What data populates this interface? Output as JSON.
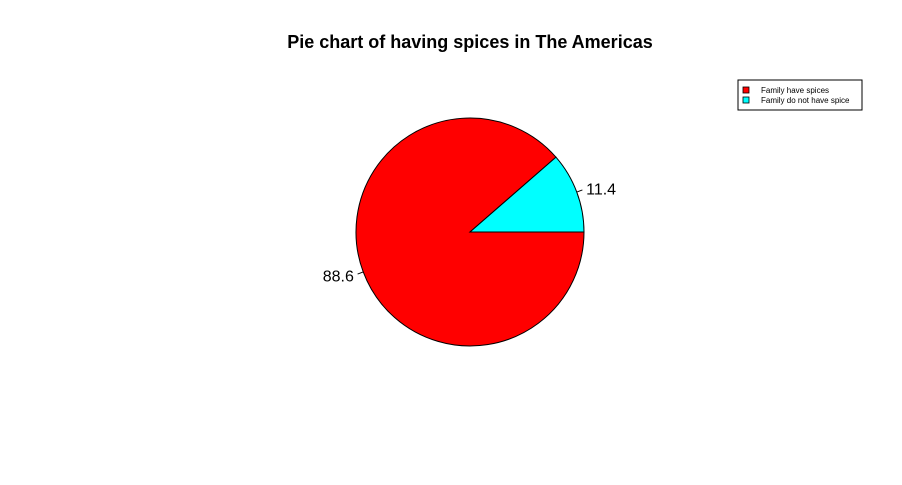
{
  "chart_data": {
    "type": "pie",
    "title": "Pie chart of having spices in The Americas",
    "labels": [
      "Family have spices",
      "Family do not have spice"
    ],
    "values": [
      88.6,
      11.4
    ],
    "value_labels": [
      "88.6",
      "11.4"
    ],
    "colors": [
      "#FF0000",
      "#00FFFF"
    ],
    "start_angle_deg": 0,
    "direction": "clockwise",
    "legend": {
      "position": "top-right",
      "entries": [
        "Family have spices",
        "Family do not have spice"
      ]
    }
  }
}
